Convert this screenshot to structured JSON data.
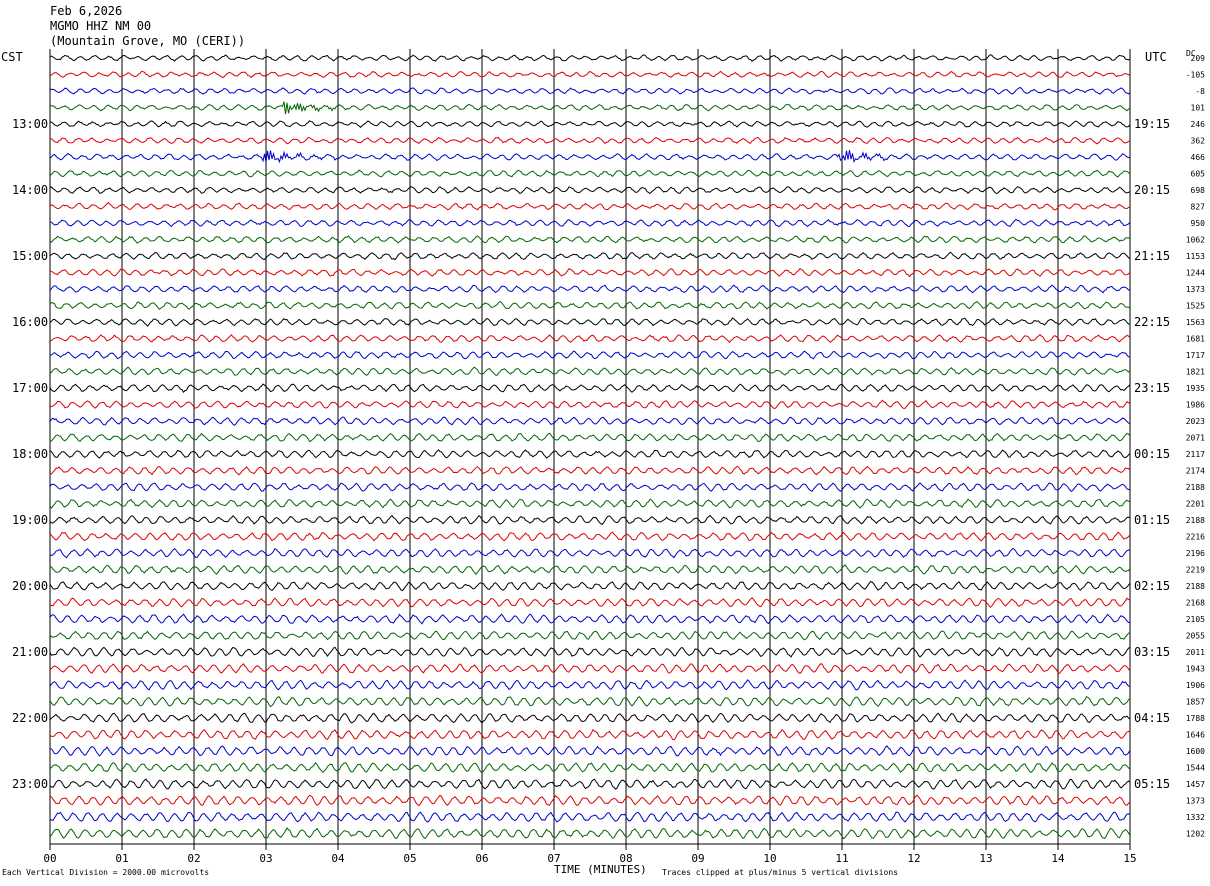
{
  "header": {
    "date": "Feb 6,2026",
    "station": "MGMO HHZ NM 00",
    "location": "(Mountain Grove, MO (CERI))"
  },
  "left_tz": "CST",
  "right_tz": "UTC",
  "dc_label": "DC",
  "footer": {
    "scale": "Each Vertical Division = 2000.00 microvolts",
    "clip": "Traces clipped at plus/minus 5 vertical divisions"
  },
  "trace_colors": [
    "#000000",
    "#dd0000",
    "#0000cc",
    "#006600"
  ],
  "chart_data": {
    "type": "line",
    "xlabel": "TIME (MINUTES)",
    "x_ticks": [
      "00",
      "01",
      "02",
      "03",
      "04",
      "05",
      "06",
      "07",
      "08",
      "09",
      "10",
      "11",
      "12",
      "13",
      "14",
      "15"
    ],
    "xlim": [
      0,
      15
    ],
    "left_hour_labels": [
      "13:00",
      "14:00",
      "15:00",
      "16:00",
      "17:00",
      "18:00",
      "19:00",
      "20:00",
      "21:00",
      "22:00",
      "23:00"
    ],
    "right_hour_labels": [
      "19:15",
      "20:15",
      "21:15",
      "22:15",
      "23:15",
      "00:15",
      "01:15",
      "02:15",
      "03:15",
      "04:15",
      "05:15"
    ],
    "dc_offsets": [
      "209",
      "-105",
      "-8",
      "101",
      "246",
      "362",
      "466",
      "605",
      "698",
      "827",
      "950",
      "1062",
      "1153",
      "1244",
      "1373",
      "1525",
      "1563",
      "1681",
      "1717",
      "1821",
      "1935",
      "1986",
      "2023",
      "2071",
      "2117",
      "2174",
      "2188",
      "2201",
      "2188",
      "2216",
      "2196",
      "2219",
      "2188",
      "2168",
      "2105",
      "2055",
      "2011",
      "1943",
      "1906",
      "1857",
      "1788",
      "1646",
      "1600",
      "1544",
      "1457",
      "1373",
      "1332",
      "1202"
    ],
    "events": [
      {
        "trace": 3,
        "minute": 3.3
      },
      {
        "trace": 6,
        "minute": 3.0
      },
      {
        "trace": 6,
        "minute": 11.0
      }
    ]
  }
}
